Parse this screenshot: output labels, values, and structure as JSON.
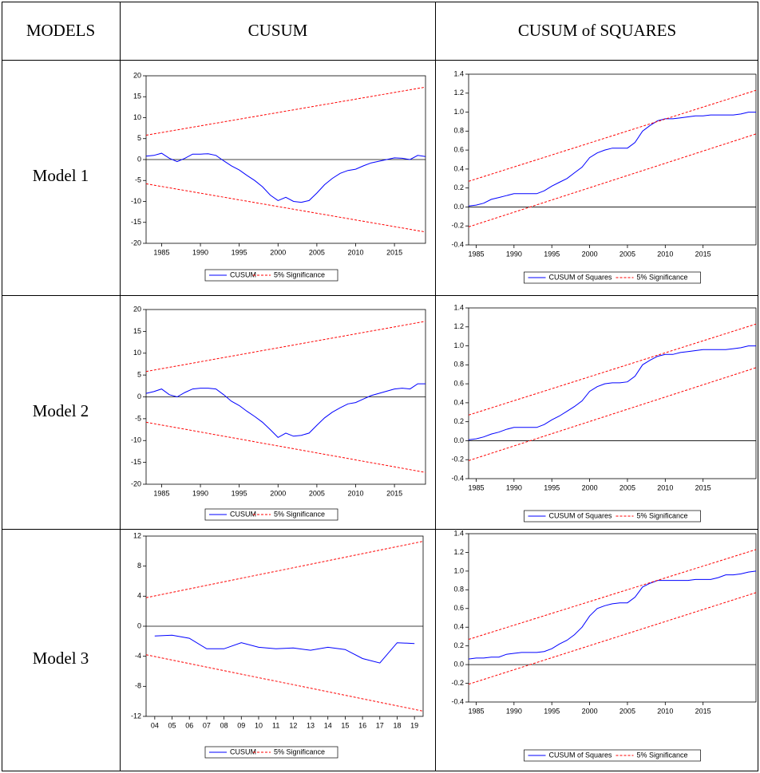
{
  "table": {
    "header": [
      "MODELS",
      "CUSUM",
      "CUSUM of SQUARES"
    ],
    "row_labels": [
      "Model 1",
      "Model 2",
      "Model 3"
    ]
  },
  "chart_data": [
    {
      "type": "line",
      "x": [
        1983,
        1984,
        1985,
        1986,
        1987,
        1988,
        1989,
        1990,
        1991,
        1992,
        1993,
        1994,
        1995,
        1996,
        1997,
        1998,
        1999,
        2000,
        2001,
        2002,
        2003,
        2004,
        2005,
        2006,
        2007,
        2008,
        2009,
        2010,
        2011,
        2012,
        2013,
        2014,
        2015,
        2016,
        2017,
        2018,
        2019
      ],
      "xlim": [
        1983,
        2019
      ],
      "xticks": [
        1985,
        1990,
        1995,
        2000,
        2005,
        2010,
        2015
      ],
      "ylim": [
        -20,
        20
      ],
      "yticks": [
        -20,
        -15,
        -10,
        -5,
        0,
        5,
        10,
        15,
        20
      ],
      "hline": 0,
      "legend": "bottom",
      "series": [
        {
          "name": "CUSUM",
          "color": "#0000ff",
          "values": [
            0.8,
            1.0,
            1.5,
            0.3,
            -0.5,
            0.3,
            1.3,
            1.3,
            1.4,
            1.0,
            -0.3,
            -1.5,
            -2.5,
            -3.8,
            -5.0,
            -6.5,
            -8.5,
            -9.8,
            -9.0,
            -10.0,
            -10.2,
            -9.8,
            -8.0,
            -6.0,
            -4.5,
            -3.3,
            -2.6,
            -2.3,
            -1.5,
            -0.8,
            -0.4,
            0.0,
            0.4,
            0.3,
            0.0,
            1.0,
            0.7
          ]
        },
        {
          "name": "5% Significance",
          "color": "#ff0000",
          "dash": true,
          "x": [
            1983,
            2019
          ],
          "values": [
            5.8,
            17.3
          ],
          "lower": [
            -5.8,
            -17.3
          ]
        }
      ]
    },
    {
      "type": "line",
      "x": [
        1984,
        1985,
        1986,
        1987,
        1988,
        1989,
        1990,
        1991,
        1992,
        1993,
        1994,
        1995,
        1996,
        1997,
        1998,
        1999,
        2000,
        2001,
        2002,
        2003,
        2004,
        2005,
        2006,
        2007,
        2008,
        2009,
        2010,
        2011,
        2012,
        2013,
        2014,
        2015,
        2016,
        2017,
        2018,
        2019,
        2020,
        2021,
        2022
      ],
      "xlim": [
        1984,
        2022
      ],
      "xticks": [
        1985,
        1990,
        1995,
        2000,
        2005,
        2010,
        2015
      ],
      "ylim": [
        -0.4,
        1.4
      ],
      "yticks": [
        -0.4,
        -0.2,
        {
          "value": 0,
          "label": "0.0"
        },
        0.2,
        0.4,
        0.6,
        0.8,
        {
          "value": 1,
          "label": "1.0"
        },
        1.2,
        1.4
      ],
      "hline": 0,
      "legend": "bottom",
      "series": [
        {
          "name": "CUSUM of Squares",
          "color": "#0000ff",
          "values": [
            0.01,
            0.02,
            0.04,
            0.08,
            0.1,
            0.12,
            0.14,
            0.14,
            0.14,
            0.14,
            0.17,
            0.22,
            0.26,
            0.3,
            0.36,
            0.42,
            0.52,
            0.57,
            0.6,
            0.62,
            0.62,
            0.62,
            0.68,
            0.8,
            0.86,
            0.91,
            0.93,
            0.93,
            0.94,
            0.95,
            0.96,
            0.96,
            0.97,
            0.97,
            0.97,
            0.97,
            0.98,
            1.0,
            1.0
          ]
        },
        {
          "name": "5% Significance",
          "color": "#ff0000",
          "dash": true,
          "x": [
            1984,
            2022
          ],
          "values": [
            0.27,
            1.23
          ],
          "lower": [
            -0.21,
            0.77
          ]
        }
      ]
    },
    {
      "type": "line",
      "x": [
        1983,
        1984,
        1985,
        1986,
        1987,
        1988,
        1989,
        1990,
        1991,
        1992,
        1993,
        1994,
        1995,
        1996,
        1997,
        1998,
        1999,
        2000,
        2001,
        2002,
        2003,
        2004,
        2005,
        2006,
        2007,
        2008,
        2009,
        2010,
        2011,
        2012,
        2013,
        2014,
        2015,
        2016,
        2017,
        2018,
        2019
      ],
      "xlim": [
        1983,
        2019
      ],
      "xticks": [
        1985,
        1990,
        1995,
        2000,
        2005,
        2010,
        2015
      ],
      "ylim": [
        -20,
        20
      ],
      "yticks": [
        -20,
        -15,
        -10,
        -5,
        0,
        5,
        10,
        15,
        20
      ],
      "hline": 0,
      "legend": "bottom",
      "series": [
        {
          "name": "CUSUM",
          "color": "#0000ff",
          "values": [
            0.8,
            1.2,
            1.8,
            0.5,
            0,
            1.0,
            1.8,
            2.0,
            2.0,
            1.8,
            0.5,
            -1,
            -2,
            -3.3,
            -4.5,
            -5.8,
            -7.5,
            -9.3,
            -8.3,
            -9.0,
            -8.8,
            -8.3,
            -6.5,
            -4.8,
            -3.5,
            -2.5,
            -1.6,
            -1.3,
            -0.5,
            0.3,
            0.8,
            1.3,
            1.8,
            2.0,
            1.8,
            3.0,
            3.0
          ]
        },
        {
          "name": "5% Significance",
          "color": "#ff0000",
          "dash": true,
          "x": [
            1983,
            2019
          ],
          "values": [
            5.8,
            17.3
          ],
          "lower": [
            -5.8,
            -17.3
          ]
        }
      ]
    },
    {
      "type": "line",
      "x": [
        1984,
        1985,
        1986,
        1987,
        1988,
        1989,
        1990,
        1991,
        1992,
        1993,
        1994,
        1995,
        1996,
        1997,
        1998,
        1999,
        2000,
        2001,
        2002,
        2003,
        2004,
        2005,
        2006,
        2007,
        2008,
        2009,
        2010,
        2011,
        2012,
        2013,
        2014,
        2015,
        2016,
        2017,
        2018,
        2019,
        2020,
        2021,
        2022
      ],
      "xlim": [
        1984,
        2022
      ],
      "xticks": [
        1985,
        1990,
        1995,
        2000,
        2005,
        2010,
        2015
      ],
      "ylim": [
        -0.4,
        1.4
      ],
      "yticks": [
        -0.4,
        -0.2,
        {
          "value": 0,
          "label": "0.0"
        },
        0.2,
        0.4,
        0.6,
        0.8,
        {
          "value": 1,
          "label": "1.0"
        },
        1.2,
        1.4
      ],
      "hline": 0,
      "legend": "bottom",
      "series": [
        {
          "name": "CUSUM of Squares",
          "color": "#0000ff",
          "values": [
            0.01,
            0.02,
            0.04,
            0.07,
            0.09,
            0.12,
            0.14,
            0.14,
            0.14,
            0.14,
            0.17,
            0.22,
            0.26,
            0.31,
            0.36,
            0.42,
            0.52,
            0.57,
            0.6,
            0.61,
            0.61,
            0.62,
            0.68,
            0.8,
            0.85,
            0.89,
            0.91,
            0.91,
            0.93,
            0.94,
            0.95,
            0.96,
            0.96,
            0.96,
            0.96,
            0.97,
            0.98,
            1.0,
            1.0
          ]
        },
        {
          "name": "5% Significance",
          "color": "#ff0000",
          "dash": true,
          "x": [
            1984,
            2022
          ],
          "values": [
            0.27,
            1.23
          ],
          "lower": [
            -0.21,
            0.77
          ]
        }
      ]
    },
    {
      "type": "line",
      "x": [
        2004,
        2005,
        2006,
        2007,
        2008,
        2009,
        2010,
        2011,
        2012,
        2013,
        2014,
        2015,
        2016,
        2017,
        2018,
        2019
      ],
      "xlim": [
        2003.5,
        2019.5
      ],
      "xticks": [
        {
          "value": 2004,
          "label": "04"
        },
        {
          "value": 2005,
          "label": "05"
        },
        {
          "value": 2006,
          "label": "06"
        },
        {
          "value": 2007,
          "label": "07"
        },
        {
          "value": 2008,
          "label": "08"
        },
        {
          "value": 2009,
          "label": "09"
        },
        {
          "value": 2010,
          "label": "10"
        },
        {
          "value": 2011,
          "label": "11"
        },
        {
          "value": 2012,
          "label": "12"
        },
        {
          "value": 2013,
          "label": "13"
        },
        {
          "value": 2014,
          "label": "14"
        },
        {
          "value": 2015,
          "label": "15"
        },
        {
          "value": 2016,
          "label": "16"
        },
        {
          "value": 2017,
          "label": "17"
        },
        {
          "value": 2018,
          "label": "18"
        },
        {
          "value": 2019,
          "label": "19"
        }
      ],
      "ylim": [
        -12,
        12
      ],
      "yticks": [
        -12,
        -8,
        -4,
        0,
        4,
        8,
        12
      ],
      "hline": 0,
      "legend": "bottom",
      "series": [
        {
          "name": "CUSUM",
          "color": "#0000ff",
          "values": [
            -1.3,
            -1.2,
            -1.6,
            -3.0,
            -3.0,
            -2.2,
            -2.8,
            -3.0,
            -2.9,
            -3.2,
            -2.8,
            -3.1,
            -4.3,
            -4.9,
            -2.2,
            -2.3
          ]
        },
        {
          "name": "5% Significance",
          "color": "#ff0000",
          "dash": true,
          "x": [
            2003.5,
            2019.5
          ],
          "values": [
            3.8,
            11.3
          ],
          "lower": [
            -3.8,
            -11.3
          ]
        }
      ]
    },
    {
      "type": "line",
      "x": [
        1984,
        1985,
        1986,
        1987,
        1988,
        1989,
        1990,
        1991,
        1992,
        1993,
        1994,
        1995,
        1996,
        1997,
        1998,
        1999,
        2000,
        2001,
        2002,
        2003,
        2004,
        2005,
        2006,
        2007,
        2008,
        2009,
        2010,
        2011,
        2012,
        2013,
        2014,
        2015,
        2016,
        2017,
        2018,
        2019,
        2020,
        2021,
        2022
      ],
      "xlim": [
        1984,
        2022
      ],
      "xticks": [
        1985,
        1990,
        1995,
        2000,
        2005,
        2010,
        2015
      ],
      "ylim": [
        -0.4,
        1.4
      ],
      "yticks": [
        -0.4,
        -0.2,
        {
          "value": 0,
          "label": "0.0"
        },
        0.2,
        0.4,
        0.6,
        0.8,
        {
          "value": 1,
          "label": "1.0"
        },
        1.2,
        1.4
      ],
      "hline": 0,
      "legend": "bottom",
      "series": [
        {
          "name": "CUSUM of Squares",
          "color": "#0000ff",
          "values": [
            0.06,
            0.07,
            0.07,
            0.08,
            0.08,
            0.11,
            0.12,
            0.13,
            0.13,
            0.13,
            0.14,
            0.17,
            0.22,
            0.26,
            0.32,
            0.4,
            0.52,
            0.6,
            0.63,
            0.65,
            0.66,
            0.66,
            0.72,
            0.83,
            0.87,
            0.9,
            0.9,
            0.9,
            0.9,
            0.9,
            0.91,
            0.91,
            0.91,
            0.93,
            0.96,
            0.96,
            0.97,
            0.99,
            1.0
          ]
        },
        {
          "name": "5% Significance",
          "color": "#ff0000",
          "dash": true,
          "x": [
            1984,
            2022
          ],
          "values": [
            0.27,
            1.23
          ],
          "lower": [
            -0.21,
            0.77
          ]
        }
      ]
    }
  ]
}
